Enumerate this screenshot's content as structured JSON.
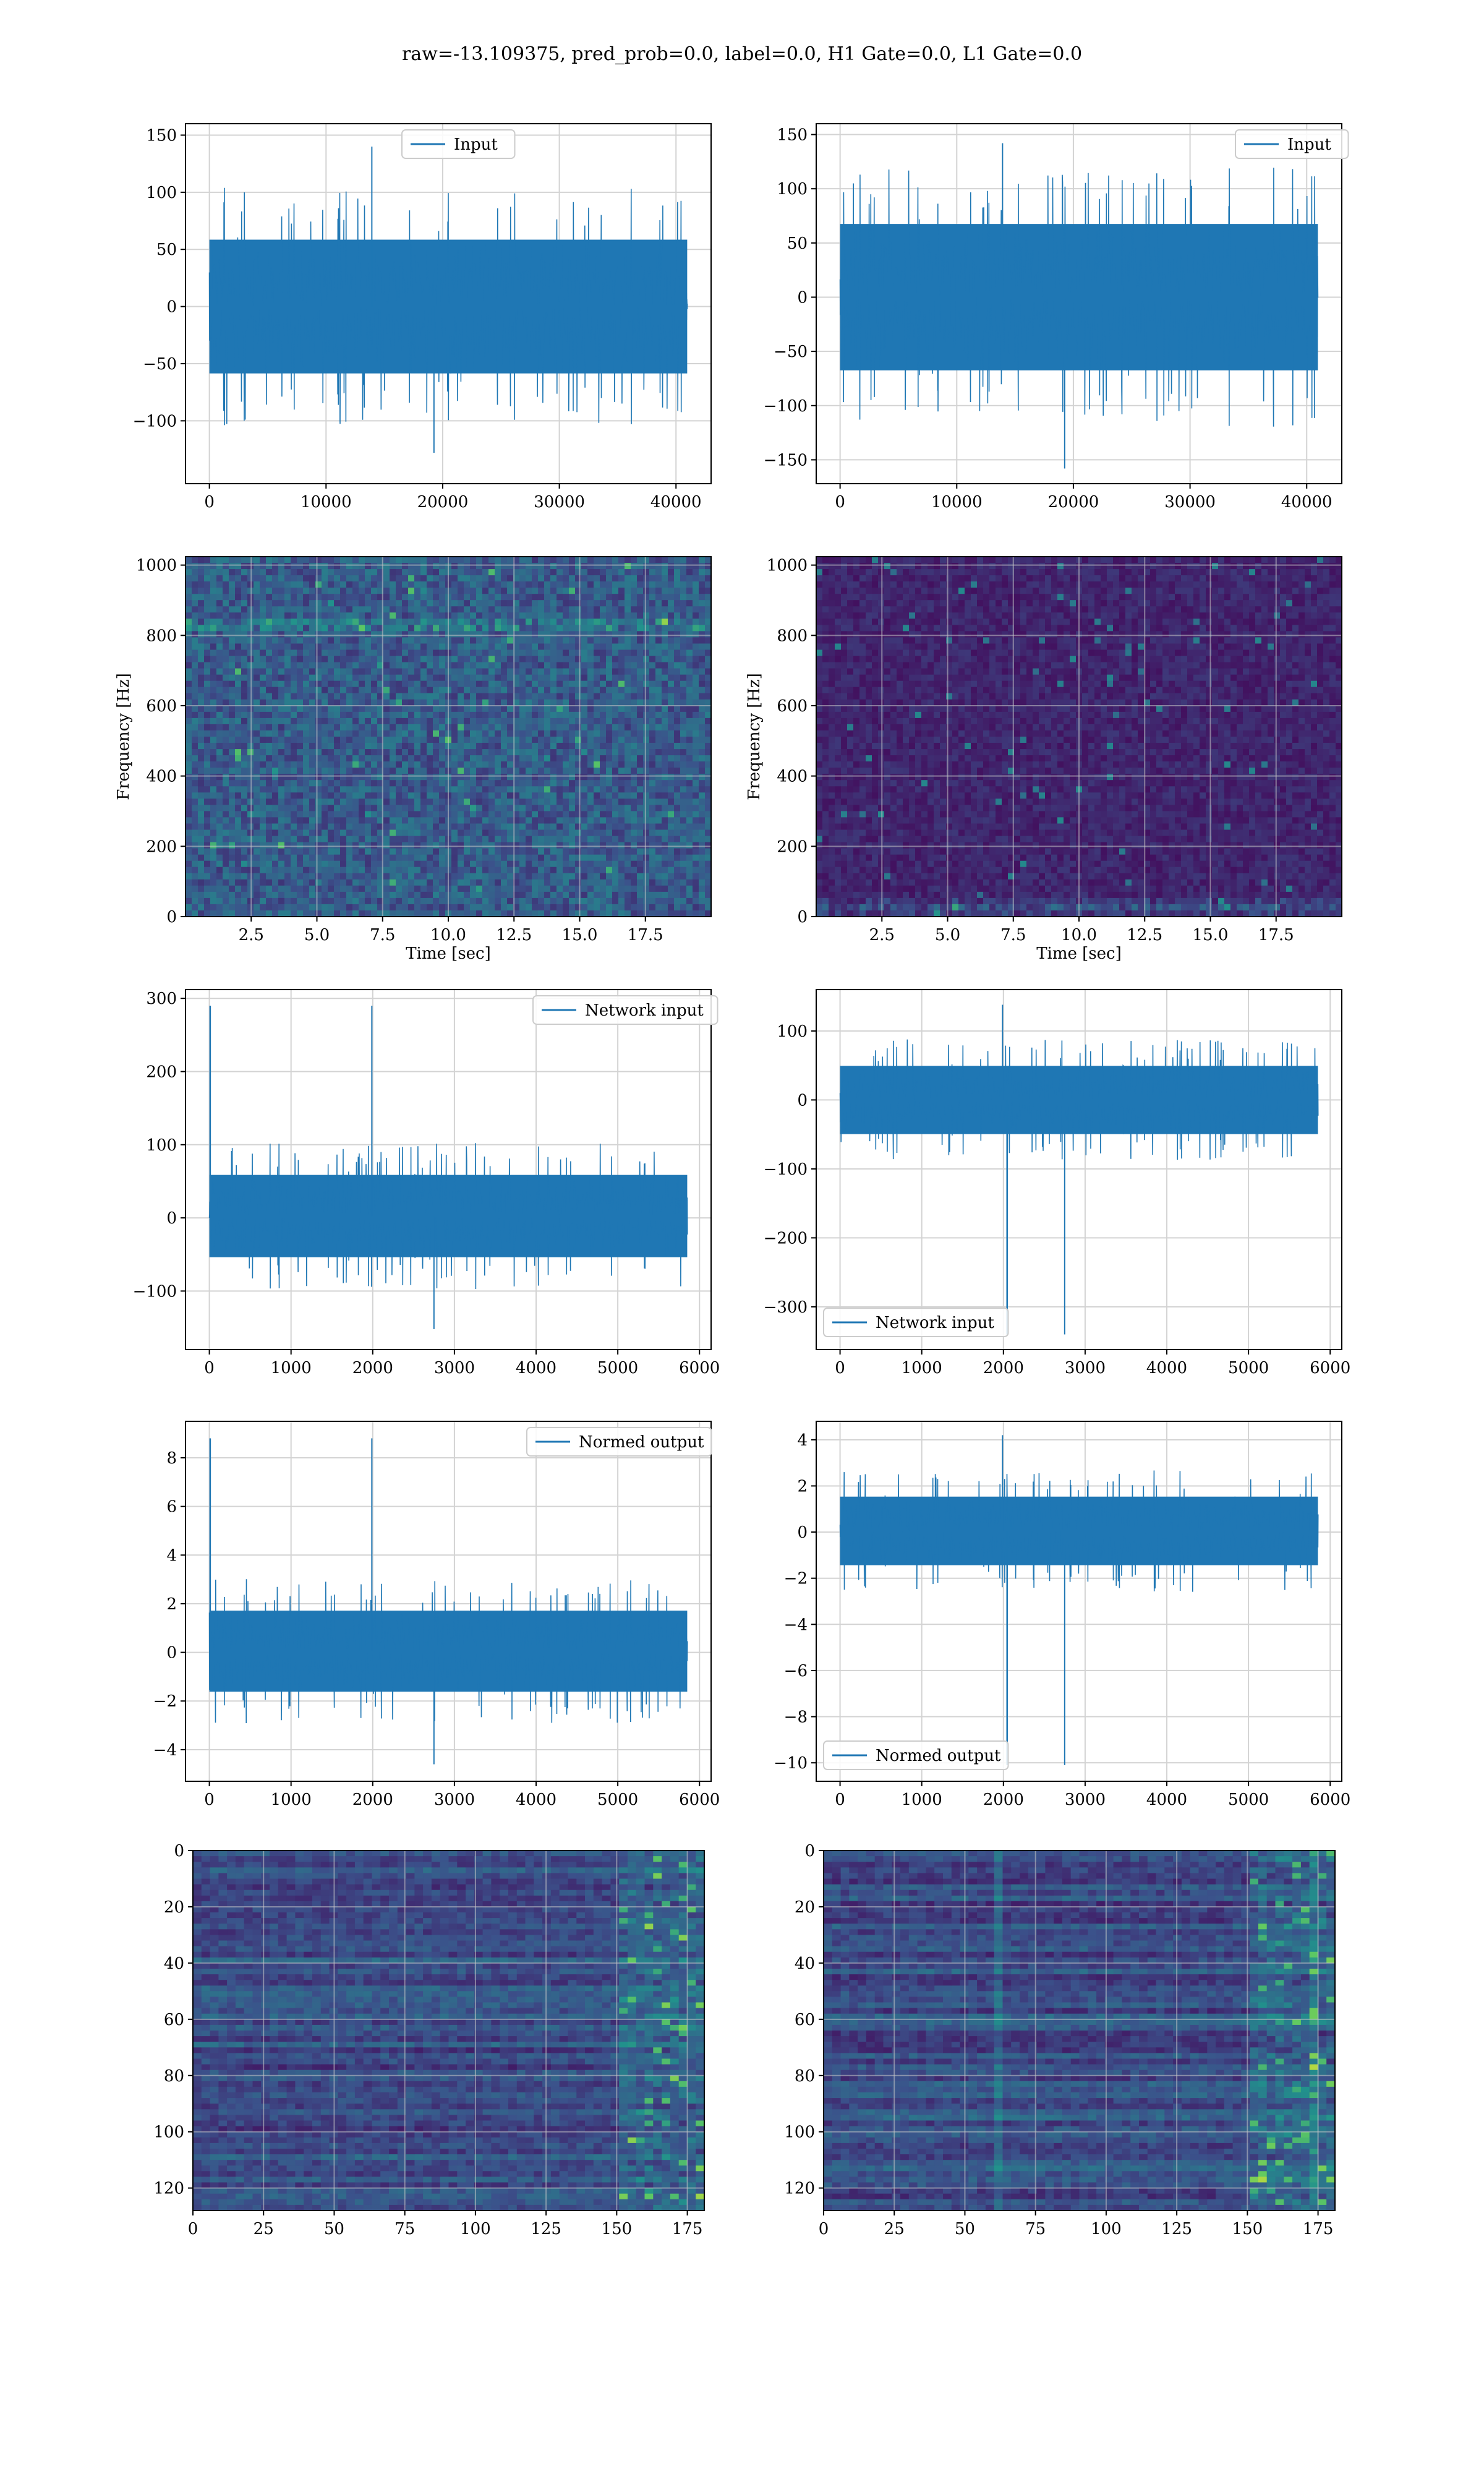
{
  "suptitle": "raw=-13.109375, pred_prob=0.0, label=0.0, H1 Gate=0.0, L1 Gate=0.0",
  "colors": {
    "line": "#1f77b4",
    "grid": "#d3d3d3",
    "viridis_dark": "#440154",
    "viridis_bright": "#fde725"
  },
  "chart_data": [
    {
      "type": "line",
      "title": "",
      "xlabel": "",
      "ylabel": "",
      "series": [
        {
          "name": "Input",
          "x_range": [
            0,
            40960
          ],
          "min": -128,
          "max": 140,
          "typical": [
            -65,
            65
          ]
        }
      ],
      "xlim": [
        -2048,
        43008
      ],
      "ylim": [
        -155,
        160
      ],
      "xticks": [
        "0",
        "10000",
        "20000",
        "30000",
        "40000"
      ],
      "xtick_values": [
        0,
        10000,
        20000,
        30000,
        40000
      ],
      "yticks": [
        "−100",
        "−50",
        "0",
        "50",
        "100",
        "150"
      ],
      "ytick_values": [
        -100,
        -50,
        0,
        50,
        100,
        150
      ],
      "legend": "upper center",
      "grid": true
    },
    {
      "type": "line",
      "title": "",
      "xlabel": "",
      "ylabel": "",
      "series": [
        {
          "name": "Input",
          "x_range": [
            0,
            40960
          ],
          "min": -158,
          "max": 142,
          "typical": [
            -75,
            75
          ]
        }
      ],
      "xlim": [
        -2048,
        43008
      ],
      "ylim": [
        -172,
        160
      ],
      "xticks": [
        "0",
        "10000",
        "20000",
        "30000",
        "40000"
      ],
      "xtick_values": [
        0,
        10000,
        20000,
        30000,
        40000
      ],
      "yticks": [
        "−150",
        "−100",
        "−50",
        "0",
        "50",
        "100",
        "150"
      ],
      "ytick_values": [
        -150,
        -100,
        -50,
        0,
        50,
        100,
        150
      ],
      "legend": "upper right",
      "grid": true
    },
    {
      "type": "heatmap",
      "title": "",
      "xlabel": "Time [sec]",
      "ylabel": "Frequency [Hz]",
      "xlim": [
        0,
        20
      ],
      "ylim": [
        0,
        1024
      ],
      "xticks": [
        "2.5",
        "5.0",
        "7.5",
        "10.0",
        "12.5",
        "15.0",
        "17.5"
      ],
      "xtick_values": [
        2.5,
        5,
        7.5,
        10,
        12.5,
        15,
        17.5
      ],
      "yticks": [
        "0",
        "200",
        "400",
        "600",
        "800",
        "1000"
      ],
      "ytick_values": [
        0,
        200,
        400,
        600,
        800,
        1000
      ],
      "note_band_hz": 835,
      "grid": true
    },
    {
      "type": "heatmap",
      "title": "",
      "xlabel": "Time [sec]",
      "ylabel": "Frequency [Hz]",
      "xlim": [
        0,
        20
      ],
      "ylim": [
        0,
        1024
      ],
      "xticks": [
        "2.5",
        "5.0",
        "7.5",
        "10.0",
        "12.5",
        "15.0",
        "17.5"
      ],
      "xtick_values": [
        2.5,
        5,
        7.5,
        10,
        12.5,
        15,
        17.5
      ],
      "yticks": [
        "0",
        "200",
        "400",
        "600",
        "800",
        "1000"
      ],
      "ytick_values": [
        0,
        200,
        400,
        600,
        800,
        1000
      ],
      "note_band_hz": 30,
      "grid": true
    },
    {
      "type": "line",
      "title": "",
      "xlabel": "",
      "ylabel": "",
      "series": [
        {
          "name": "Network input",
          "x_range": [
            0,
            5850
          ],
          "min": -152,
          "max": 290,
          "typical": [
            -60,
            65
          ],
          "spike_x": 10,
          "spike_y": 290
        }
      ],
      "xlim": [
        -292,
        6142
      ],
      "ylim": [
        -180,
        312
      ],
      "xticks": [
        "0",
        "1000",
        "2000",
        "3000",
        "4000",
        "5000",
        "6000"
      ],
      "xtick_values": [
        0,
        1000,
        2000,
        3000,
        4000,
        5000,
        6000
      ],
      "yticks": [
        "−100",
        "0",
        "100",
        "200",
        "300"
      ],
      "ytick_values": [
        -100,
        0,
        100,
        200,
        300
      ],
      "legend": "upper right",
      "grid": true
    },
    {
      "type": "line",
      "title": "",
      "xlabel": "",
      "ylabel": "",
      "series": [
        {
          "name": "Network input",
          "x_range": [
            0,
            5850
          ],
          "min": -340,
          "max": 138,
          "typical": [
            -55,
            55
          ],
          "spike_x": 2045,
          "spike_y": -340
        }
      ],
      "xlim": [
        -292,
        6142
      ],
      "ylim": [
        -362,
        160
      ],
      "xticks": [
        "0",
        "1000",
        "2000",
        "3000",
        "4000",
        "5000",
        "6000"
      ],
      "xtick_values": [
        0,
        1000,
        2000,
        3000,
        4000,
        5000,
        6000
      ],
      "yticks": [
        "−300",
        "−200",
        "−100",
        "0",
        "100"
      ],
      "ytick_values": [
        -300,
        -200,
        -100,
        0,
        100
      ],
      "legend": "lower left",
      "grid": true
    },
    {
      "type": "line",
      "title": "",
      "xlabel": "",
      "ylabel": "",
      "series": [
        {
          "name": "Normed output",
          "x_range": [
            0,
            5850
          ],
          "min": -4.6,
          "max": 8.8,
          "typical": [
            -1.8,
            1.9
          ],
          "spike_x": 10,
          "spike_y": 8.8
        }
      ],
      "xlim": [
        -292,
        6142
      ],
      "ylim": [
        -5.3,
        9.5
      ],
      "xticks": [
        "0",
        "1000",
        "2000",
        "3000",
        "4000",
        "5000",
        "6000"
      ],
      "xtick_values": [
        0,
        1000,
        2000,
        3000,
        4000,
        5000,
        6000
      ],
      "yticks": [
        "−4",
        "−2",
        "0",
        "2",
        "4",
        "6",
        "8"
      ],
      "ytick_values": [
        -4,
        -2,
        0,
        2,
        4,
        6,
        8
      ],
      "legend": "upper right",
      "grid": true
    },
    {
      "type": "line",
      "title": "",
      "xlabel": "",
      "ylabel": "",
      "series": [
        {
          "name": "Normed output",
          "x_range": [
            0,
            5850
          ],
          "min": -10.1,
          "max": 4.2,
          "typical": [
            -1.6,
            1.7
          ],
          "spike_x": 2045,
          "spike_y": -10.1
        }
      ],
      "xlim": [
        -292,
        6142
      ],
      "ylim": [
        -10.8,
        4.8
      ],
      "xticks": [
        "0",
        "1000",
        "2000",
        "3000",
        "4000",
        "5000",
        "6000"
      ],
      "xtick_values": [
        0,
        1000,
        2000,
        3000,
        4000,
        5000,
        6000
      ],
      "yticks": [
        "−10",
        "−8",
        "−6",
        "−4",
        "−2",
        "0",
        "2",
        "4"
      ],
      "ytick_values": [
        -10,
        -8,
        -6,
        -4,
        -2,
        0,
        2,
        4
      ],
      "legend": "lower left",
      "grid": true
    },
    {
      "type": "heatmap",
      "title": "",
      "xlabel": "",
      "ylabel": "",
      "rows": 128,
      "cols": 181,
      "xlim": [
        0,
        181
      ],
      "ylim": [
        128,
        0
      ],
      "xticks": [
        "0",
        "25",
        "50",
        "75",
        "100",
        "125",
        "150",
        "175"
      ],
      "xtick_values": [
        0,
        25,
        50,
        75,
        100,
        125,
        150,
        175
      ],
      "yticks": [
        "0",
        "20",
        "40",
        "60",
        "80",
        "100",
        "120"
      ],
      "ytick_values": [
        0,
        20,
        40,
        60,
        80,
        100,
        120
      ],
      "grid": true
    },
    {
      "type": "heatmap",
      "title": "",
      "xlabel": "",
      "ylabel": "",
      "rows": 128,
      "cols": 181,
      "xlim": [
        0,
        181
      ],
      "ylim": [
        128,
        0
      ],
      "xticks": [
        "0",
        "25",
        "50",
        "75",
        "100",
        "125",
        "150",
        "175"
      ],
      "xtick_values": [
        0,
        25,
        50,
        75,
        100,
        125,
        150,
        175
      ],
      "yticks": [
        "0",
        "20",
        "40",
        "60",
        "80",
        "100",
        "120"
      ],
      "ytick_values": [
        0,
        20,
        40,
        60,
        80,
        100,
        120
      ],
      "grid": true
    }
  ]
}
